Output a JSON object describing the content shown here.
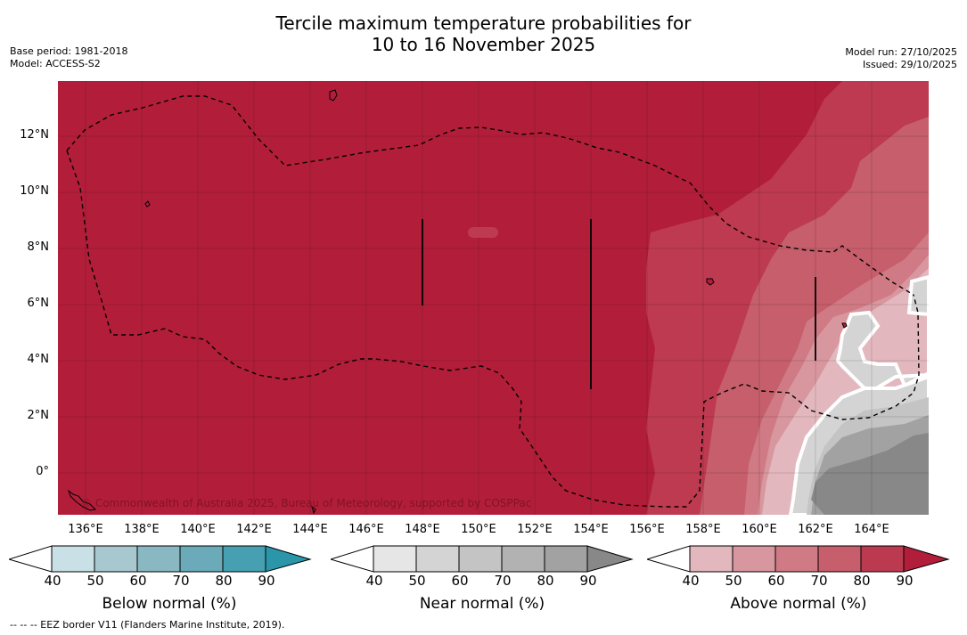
{
  "title_line1": "Tercile maximum temperature probabilities for",
  "title_line2": "10 to 16 November 2025",
  "base_period": "Base period: 1981-2018",
  "model": "Model: ACCESS-S2",
  "model_run": "Model run: 27/10/2025",
  "issued": "Issued: 29/10/2025",
  "copyright": "© Commonwealth of Australia 2025, Bureau of Meteorology, supported by COSPPac",
  "footnote": "--  --  -- EEZ border V11 (Flanders Marine Institute, 2019).",
  "lat_labels": [
    "12°N",
    "10°N",
    "8°N",
    "6°N",
    "4°N",
    "2°N",
    "0°"
  ],
  "lon_labels": [
    "136°E",
    "138°E",
    "140°E",
    "142°E",
    "144°E",
    "146°E",
    "148°E",
    "150°E",
    "152°E",
    "154°E",
    "156°E",
    "158°E",
    "160°E",
    "162°E",
    "164°E"
  ],
  "colorbars": [
    {
      "label": "Below normal (%)",
      "ticks": [
        "40",
        "50",
        "60",
        "70",
        "80",
        "90"
      ],
      "colors": [
        "#ffffff",
        "#c8e0e6",
        "#a8c8cf",
        "#8ab8c2",
        "#6aaab9",
        "#46a0b1",
        "#2b96aa"
      ]
    },
    {
      "label": "Near normal (%)",
      "ticks": [
        "40",
        "50",
        "60",
        "70",
        "80",
        "90"
      ],
      "colors": [
        "#ffffff",
        "#e6e6e6",
        "#d4d4d4",
        "#c4c4c4",
        "#b2b2b2",
        "#a2a2a2",
        "#888888"
      ]
    },
    {
      "label": "Above normal (%)",
      "ticks": [
        "40",
        "50",
        "60",
        "70",
        "80",
        "90"
      ],
      "colors": [
        "#ffffff",
        "#e2b8be",
        "#d8979f",
        "#cf7a84",
        "#c65e6c",
        "#bb3a50",
        "#b21e3a"
      ]
    }
  ],
  "map_colors": {
    "above_90": "#b21e3a",
    "above_80": "#bd3a50",
    "above_70": "#c65e6c",
    "above_60": "#cf7a84",
    "above_50": "#d8979f",
    "above_40": "#e2b8be",
    "near_50": "#d4d4d4",
    "near_60": "#c4c4c4",
    "near_70": "#a2a2a2",
    "near_90": "#888888"
  }
}
